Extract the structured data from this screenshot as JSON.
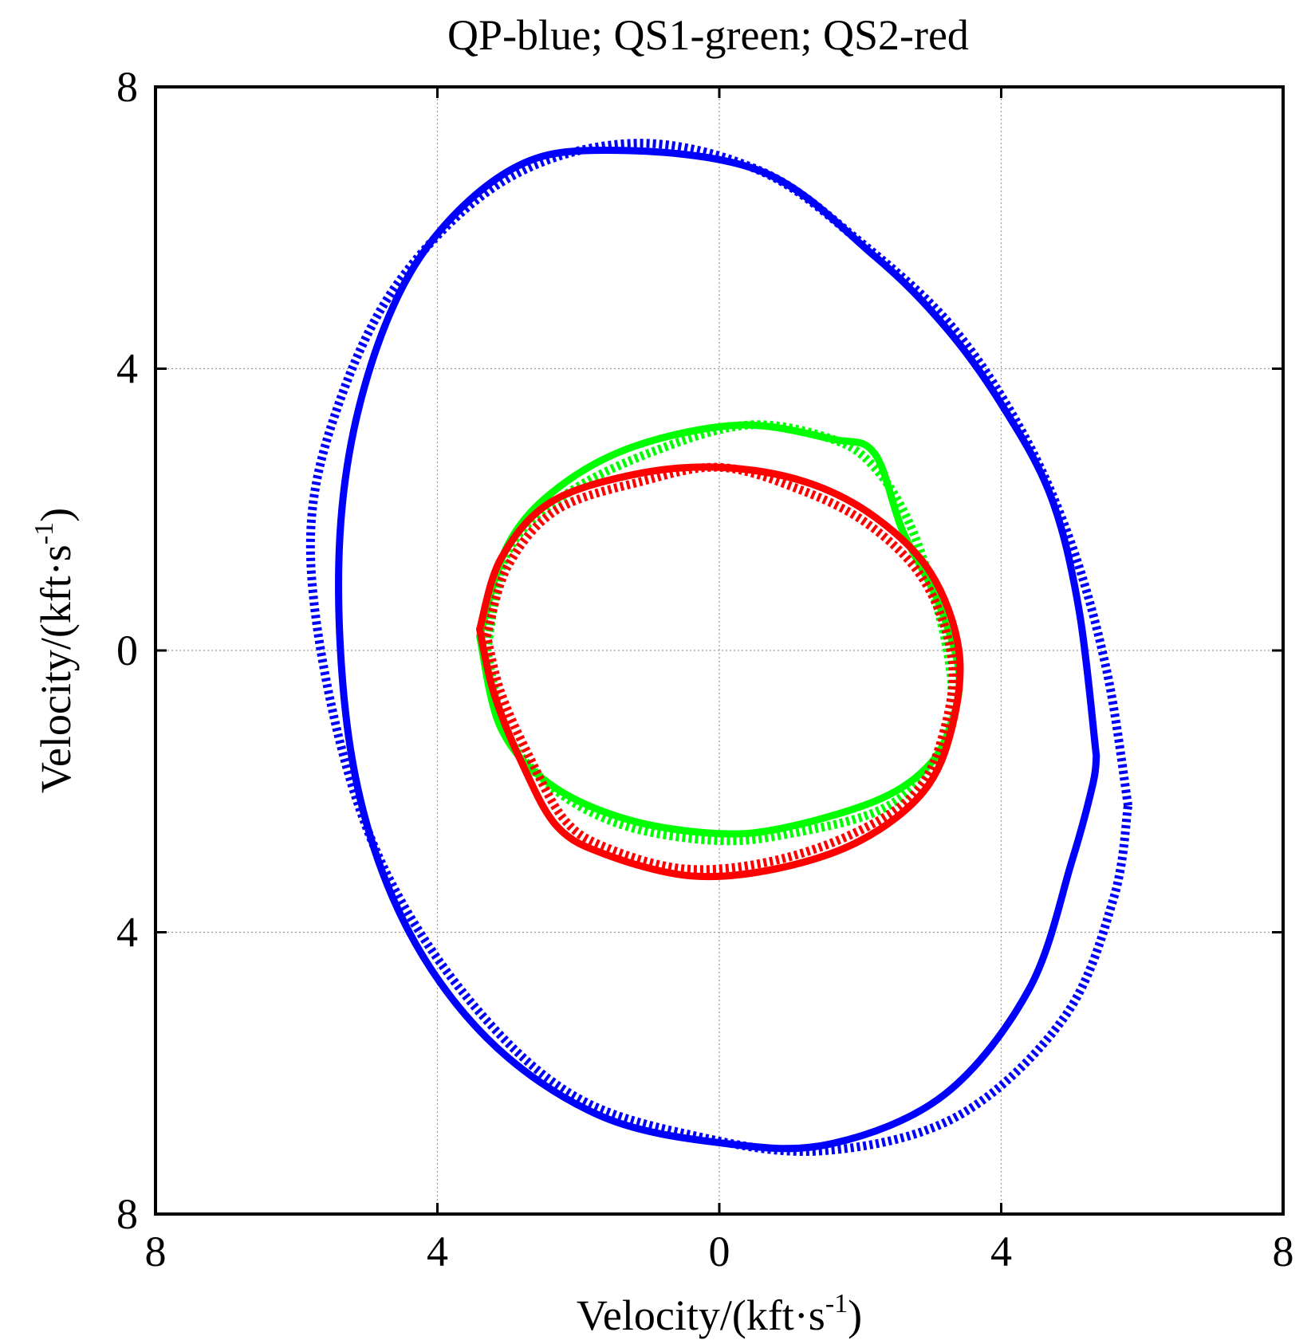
{
  "chart_data": {
    "type": "line",
    "title": "QP-blue; QS1-green; QS2-red",
    "xlabel": "Velocity/(kft·s",
    "ylabel": "Velocity/(kft·s",
    "label_superscript": "-1",
    "label_close": ")",
    "xlim": [
      -8,
      8
    ],
    "ylim": [
      -8,
      8
    ],
    "grid": true,
    "x_ticks": [
      -8,
      -4,
      0,
      4,
      8
    ],
    "y_ticks": [
      8,
      4,
      0,
      -4,
      -8
    ],
    "x_tick_labels": [
      "8",
      "4",
      "0",
      "4",
      "8"
    ],
    "y_tick_labels": [
      "8",
      "4",
      "0",
      "4",
      "8"
    ],
    "series": [
      {
        "name": "QP solid",
        "color": "#0000ff",
        "style": "solid",
        "x": [
          5.35,
          5.1,
          4.7,
          4.0,
          3.2,
          2.2,
          0.6,
          -1.6,
          -3.0,
          -4.3,
          -5.1,
          -5.4,
          -5.2,
          -4.5,
          -3.3,
          -1.7,
          0.1,
          1.6,
          3.2,
          4.4,
          5.0,
          5.3,
          5.35
        ],
        "y": [
          -1.5,
          0.6,
          2.2,
          3.5,
          4.6,
          5.6,
          6.8,
          7.1,
          6.8,
          5.5,
          3.5,
          1.2,
          -1.6,
          -3.8,
          -5.5,
          -6.6,
          -7.0,
          -7.0,
          -6.3,
          -4.8,
          -3.0,
          -1.9,
          -1.5
        ]
      },
      {
        "name": "QP dashed",
        "color": "#0000ff",
        "style": "dashed",
        "x": [
          5.8,
          5.5,
          5.0,
          4.3,
          3.3,
          2.0,
          0.6,
          -1.2,
          -3.0,
          -4.5,
          -5.4,
          -5.8,
          -5.5,
          -4.8,
          -3.6,
          -2.1,
          -0.3,
          1.5,
          3.4,
          4.9,
          5.6,
          5.8
        ],
        "y": [
          -2.2,
          -0.3,
          1.5,
          3.1,
          4.6,
          5.8,
          6.8,
          7.2,
          6.7,
          5.3,
          3.5,
          1.6,
          -0.8,
          -3.0,
          -4.9,
          -6.3,
          -6.9,
          -7.1,
          -6.6,
          -5.2,
          -3.5,
          -2.2
        ]
      },
      {
        "name": "QS1 solid",
        "color": "#00ff00",
        "style": "solid",
        "x": [
          -3.4,
          -3.0,
          -2.3,
          -1.2,
          0.3,
          1.6,
          2.2,
          2.6,
          3.1,
          3.4,
          3.3,
          3.0,
          2.3,
          1.0,
          0.0,
          -1.3,
          -2.4,
          -3.1,
          -3.4
        ],
        "y": [
          0.2,
          1.5,
          2.3,
          2.9,
          3.2,
          3.0,
          2.8,
          1.7,
          0.7,
          -0.3,
          -1.0,
          -1.6,
          -2.1,
          -2.5,
          -2.6,
          -2.4,
          -1.9,
          -1.1,
          0.2
        ]
      },
      {
        "name": "QS1 dashed",
        "color": "#00ff00",
        "style": "dashed",
        "x": [
          -3.3,
          -3.0,
          -2.2,
          -1.0,
          0.4,
          1.6,
          2.2,
          2.7,
          3.1,
          3.3,
          3.2,
          2.9,
          2.2,
          1.0,
          0.0,
          -1.3,
          -2.3,
          -3.0,
          -3.3
        ],
        "y": [
          0.0,
          1.4,
          2.2,
          2.8,
          3.2,
          3.0,
          2.6,
          1.8,
          0.6,
          -0.5,
          -1.2,
          -1.8,
          -2.3,
          -2.6,
          -2.7,
          -2.5,
          -2.0,
          -1.2,
          0.0
        ]
      },
      {
        "name": "QS2 solid",
        "color": "#ff0000",
        "style": "solid",
        "x": [
          -3.4,
          -3.1,
          -2.4,
          -1.2,
          0.0,
          1.2,
          2.2,
          3.0,
          3.4,
          3.3,
          2.9,
          2.0,
          0.8,
          -0.4,
          -1.6,
          -2.3,
          -2.8,
          -3.2,
          -3.4
        ],
        "y": [
          0.3,
          1.3,
          2.1,
          2.5,
          2.6,
          2.4,
          1.9,
          1.1,
          0.0,
          -1.1,
          -2.0,
          -2.7,
          -3.1,
          -3.2,
          -2.9,
          -2.5,
          -1.6,
          -0.6,
          0.3
        ]
      },
      {
        "name": "QS2 dashed",
        "color": "#ff0000",
        "style": "dashed",
        "x": [
          -3.3,
          -3.0,
          -2.3,
          -1.1,
          0.0,
          1.1,
          2.1,
          2.9,
          3.3,
          3.2,
          2.8,
          1.9,
          0.7,
          -0.5,
          -1.6,
          -2.2,
          -2.7,
          -3.1,
          -3.3
        ],
        "y": [
          0.2,
          1.2,
          2.0,
          2.4,
          2.6,
          2.3,
          1.8,
          1.0,
          -0.1,
          -1.1,
          -2.0,
          -2.6,
          -3.0,
          -3.1,
          -2.8,
          -2.4,
          -1.5,
          -0.6,
          0.2
        ]
      }
    ]
  }
}
